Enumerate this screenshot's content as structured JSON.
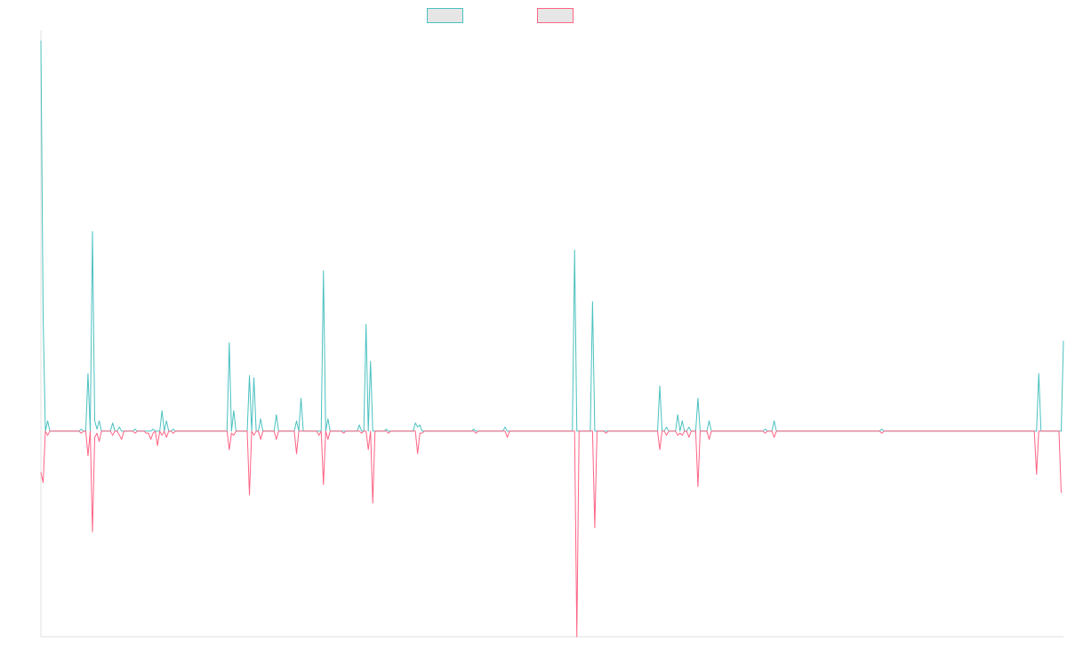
{
  "chart_data": {
    "type": "line",
    "title": "",
    "xlabel": "",
    "ylabel": "",
    "ylim": [
      -100,
      195
    ],
    "legend": {
      "position": "top",
      "entries": [
        "",
        ""
      ]
    },
    "grid": false,
    "series": [
      {
        "name": "",
        "color": "#4bc0c0",
        "fill": "#e6e6e6",
        "values": [
          190,
          55,
          0,
          5,
          0,
          0,
          0,
          0,
          0,
          0,
          0,
          0,
          0,
          0,
          0,
          0,
          0,
          0,
          1,
          0,
          0,
          28,
          0,
          97,
          5,
          1,
          5,
          0,
          0,
          0,
          0,
          0,
          4,
          0,
          0,
          2,
          0,
          0,
          0,
          0,
          0,
          0,
          1,
          0,
          0,
          0,
          0,
          0,
          0,
          0,
          1,
          0,
          0,
          0,
          10,
          0,
          5,
          0,
          0,
          1,
          0,
          0,
          0,
          0,
          0,
          0,
          0,
          0,
          0,
          0,
          0,
          0,
          0,
          0,
          0,
          0,
          0,
          0,
          0,
          0,
          0,
          0,
          0,
          0,
          43,
          0,
          10,
          0,
          0,
          0,
          0,
          0,
          0,
          27,
          0,
          26,
          0,
          0,
          6,
          0,
          0,
          0,
          0,
          0,
          0,
          8,
          0,
          0,
          0,
          0,
          0,
          0,
          0,
          0,
          5,
          0,
          16,
          0,
          0,
          0,
          0,
          0,
          0,
          0,
          0,
          0,
          78,
          0,
          6,
          0,
          0,
          0,
          0,
          0,
          0,
          0,
          0,
          0,
          0,
          0,
          0,
          0,
          3,
          0,
          0,
          52,
          0,
          34,
          0,
          0,
          0,
          0,
          0,
          0,
          1,
          0,
          0,
          0,
          0,
          0,
          0,
          0,
          0,
          0,
          0,
          0,
          0,
          4,
          2,
          3,
          0,
          0,
          0,
          0,
          0,
          0,
          0,
          0,
          0,
          0,
          0,
          0,
          0,
          0,
          0,
          0,
          0,
          0,
          0,
          0,
          0,
          0,
          0,
          1,
          0,
          0,
          0,
          0,
          0,
          0,
          0,
          0,
          0,
          0,
          0,
          0,
          0,
          2,
          0,
          0,
          0,
          0,
          0,
          0,
          0,
          0,
          0,
          0,
          0,
          0,
          0,
          0,
          0,
          0,
          0,
          0,
          0,
          0,
          0,
          0,
          0,
          0,
          0,
          0,
          0,
          0,
          0,
          0,
          88,
          0,
          0,
          0,
          0,
          0,
          0,
          0,
          63,
          0,
          0,
          0,
          0,
          0,
          0,
          0,
          0,
          0,
          0,
          0,
          0,
          0,
          0,
          0,
          0,
          0,
          0,
          0,
          0,
          0,
          0,
          0,
          0,
          0,
          0,
          0,
          0,
          0,
          22,
          0,
          0,
          2,
          0,
          0,
          0,
          0,
          8,
          0,
          5,
          0,
          0,
          2,
          0,
          0,
          0,
          16,
          0,
          0,
          0,
          0,
          5,
          0,
          0,
          0,
          0,
          0,
          0,
          0,
          0,
          0,
          0,
          0,
          0,
          0,
          0,
          0,
          0,
          0,
          0,
          0,
          0,
          0,
          0,
          0,
          0,
          1,
          0,
          0,
          0,
          5,
          0,
          0,
          0,
          0,
          0,
          0,
          0,
          0,
          0,
          0,
          0,
          0,
          0,
          0,
          0,
          0,
          0,
          0,
          0,
          0,
          0,
          0,
          0,
          0,
          0,
          0,
          0,
          0,
          0,
          0,
          0,
          0,
          0,
          0,
          0,
          0,
          0,
          0,
          0,
          0,
          0,
          0,
          0,
          0,
          0,
          0,
          0,
          1,
          0,
          0,
          0,
          0,
          0,
          0,
          0,
          0,
          0,
          0,
          0,
          0,
          0,
          0,
          0,
          0,
          0,
          0,
          0,
          0,
          0,
          0,
          0,
          0,
          0,
          0,
          0,
          0,
          0,
          0,
          0,
          0,
          0,
          0,
          0,
          0,
          0,
          0,
          0,
          0,
          0,
          0,
          0,
          0,
          0,
          0,
          0,
          0,
          0,
          0,
          0,
          0,
          0,
          0,
          0,
          0,
          0,
          0,
          0,
          0,
          0,
          0,
          0,
          0,
          0,
          0,
          0,
          0,
          0,
          28,
          0,
          0,
          0,
          0,
          0,
          0,
          0,
          0,
          0,
          0,
          44
        ]
      },
      {
        "name": "",
        "color": "#ff6384",
        "fill": "#e6e6e6",
        "values": [
          -20,
          -25,
          0,
          -2,
          0,
          0,
          0,
          0,
          0,
          0,
          0,
          0,
          0,
          0,
          0,
          0,
          0,
          0,
          -1,
          0,
          0,
          -12,
          0,
          -49,
          -3,
          -1,
          -5,
          0,
          0,
          0,
          0,
          0,
          -2,
          0,
          0,
          -2,
          -4,
          0,
          0,
          0,
          0,
          0,
          -1,
          0,
          0,
          0,
          0,
          -1,
          -1,
          -4,
          -1,
          0,
          -7,
          0,
          -2,
          0,
          -3,
          0,
          0,
          -1,
          0,
          0,
          0,
          0,
          0,
          0,
          0,
          0,
          0,
          0,
          0,
          0,
          0,
          0,
          0,
          0,
          0,
          0,
          0,
          0,
          0,
          0,
          0,
          0,
          -9,
          -1,
          -2,
          0,
          0,
          0,
          0,
          0,
          0,
          -31,
          0,
          -2,
          0,
          0,
          -4,
          0,
          0,
          0,
          0,
          0,
          0,
          -4,
          0,
          0,
          0,
          0,
          0,
          0,
          0,
          0,
          -11,
          0,
          0,
          0,
          0,
          0,
          0,
          0,
          0,
          0,
          -2,
          0,
          -26,
          0,
          -4,
          0,
          0,
          0,
          0,
          0,
          0,
          -1,
          0,
          0,
          0,
          0,
          0,
          0,
          0,
          -1,
          0,
          0,
          -9,
          0,
          -35,
          0,
          0,
          0,
          0,
          0,
          0,
          -1,
          0,
          0,
          0,
          0,
          0,
          0,
          0,
          0,
          0,
          0,
          0,
          0,
          -11,
          -1,
          -1,
          0,
          0,
          0,
          0,
          0,
          0,
          0,
          0,
          0,
          0,
          0,
          0,
          0,
          0,
          0,
          0,
          0,
          0,
          0,
          0,
          0,
          0,
          0,
          -1,
          0,
          0,
          0,
          0,
          0,
          0,
          0,
          0,
          0,
          0,
          0,
          0,
          0,
          -3,
          0,
          0,
          0,
          0,
          0,
          0,
          0,
          0,
          0,
          0,
          0,
          0,
          0,
          0,
          0,
          0,
          0,
          0,
          0,
          0,
          0,
          0,
          0,
          0,
          0,
          0,
          0,
          0,
          0,
          0,
          -100,
          0,
          0,
          0,
          0,
          0,
          0,
          0,
          -47,
          0,
          0,
          0,
          0,
          -1,
          0,
          0,
          0,
          0,
          0,
          0,
          0,
          0,
          0,
          0,
          0,
          0,
          0,
          0,
          0,
          0,
          0,
          0,
          0,
          0,
          0,
          0,
          0,
          -9,
          0,
          0,
          -2,
          0,
          0,
          0,
          0,
          -2,
          -1,
          -2,
          0,
          0,
          -3,
          0,
          0,
          0,
          -27,
          0,
          0,
          0,
          0,
          -4,
          0,
          0,
          0,
          0,
          0,
          0,
          0,
          0,
          0,
          0,
          0,
          0,
          0,
          0,
          0,
          0,
          0,
          0,
          0,
          0,
          0,
          0,
          0,
          0,
          -1,
          0,
          0,
          0,
          -3,
          0,
          0,
          0,
          0,
          0,
          0,
          0,
          0,
          0,
          0,
          0,
          0,
          0,
          0,
          0,
          0,
          0,
          0,
          0,
          0,
          0,
          0,
          0,
          0,
          0,
          0,
          0,
          0,
          0,
          0,
          0,
          0,
          0,
          0,
          0,
          0,
          0,
          0,
          0,
          0,
          0,
          0,
          0,
          0,
          0,
          0,
          0,
          -1,
          0,
          0,
          0,
          0,
          0,
          0,
          0,
          0,
          0,
          0,
          0,
          0,
          0,
          0,
          0,
          0,
          0,
          0,
          0,
          0,
          0,
          0,
          0,
          0,
          0,
          0,
          0,
          0,
          0,
          0,
          0,
          0,
          0,
          0,
          0,
          0,
          0,
          0,
          0,
          0,
          0,
          0,
          0,
          0,
          0,
          0,
          0,
          0,
          0,
          0,
          0,
          0,
          0,
          0,
          0,
          0,
          0,
          0,
          0,
          0,
          0,
          0,
          0,
          0,
          0,
          0,
          0,
          0,
          -21,
          0,
          0,
          0,
          0,
          0,
          0,
          0,
          0,
          0,
          0,
          -30
        ]
      }
    ]
  }
}
